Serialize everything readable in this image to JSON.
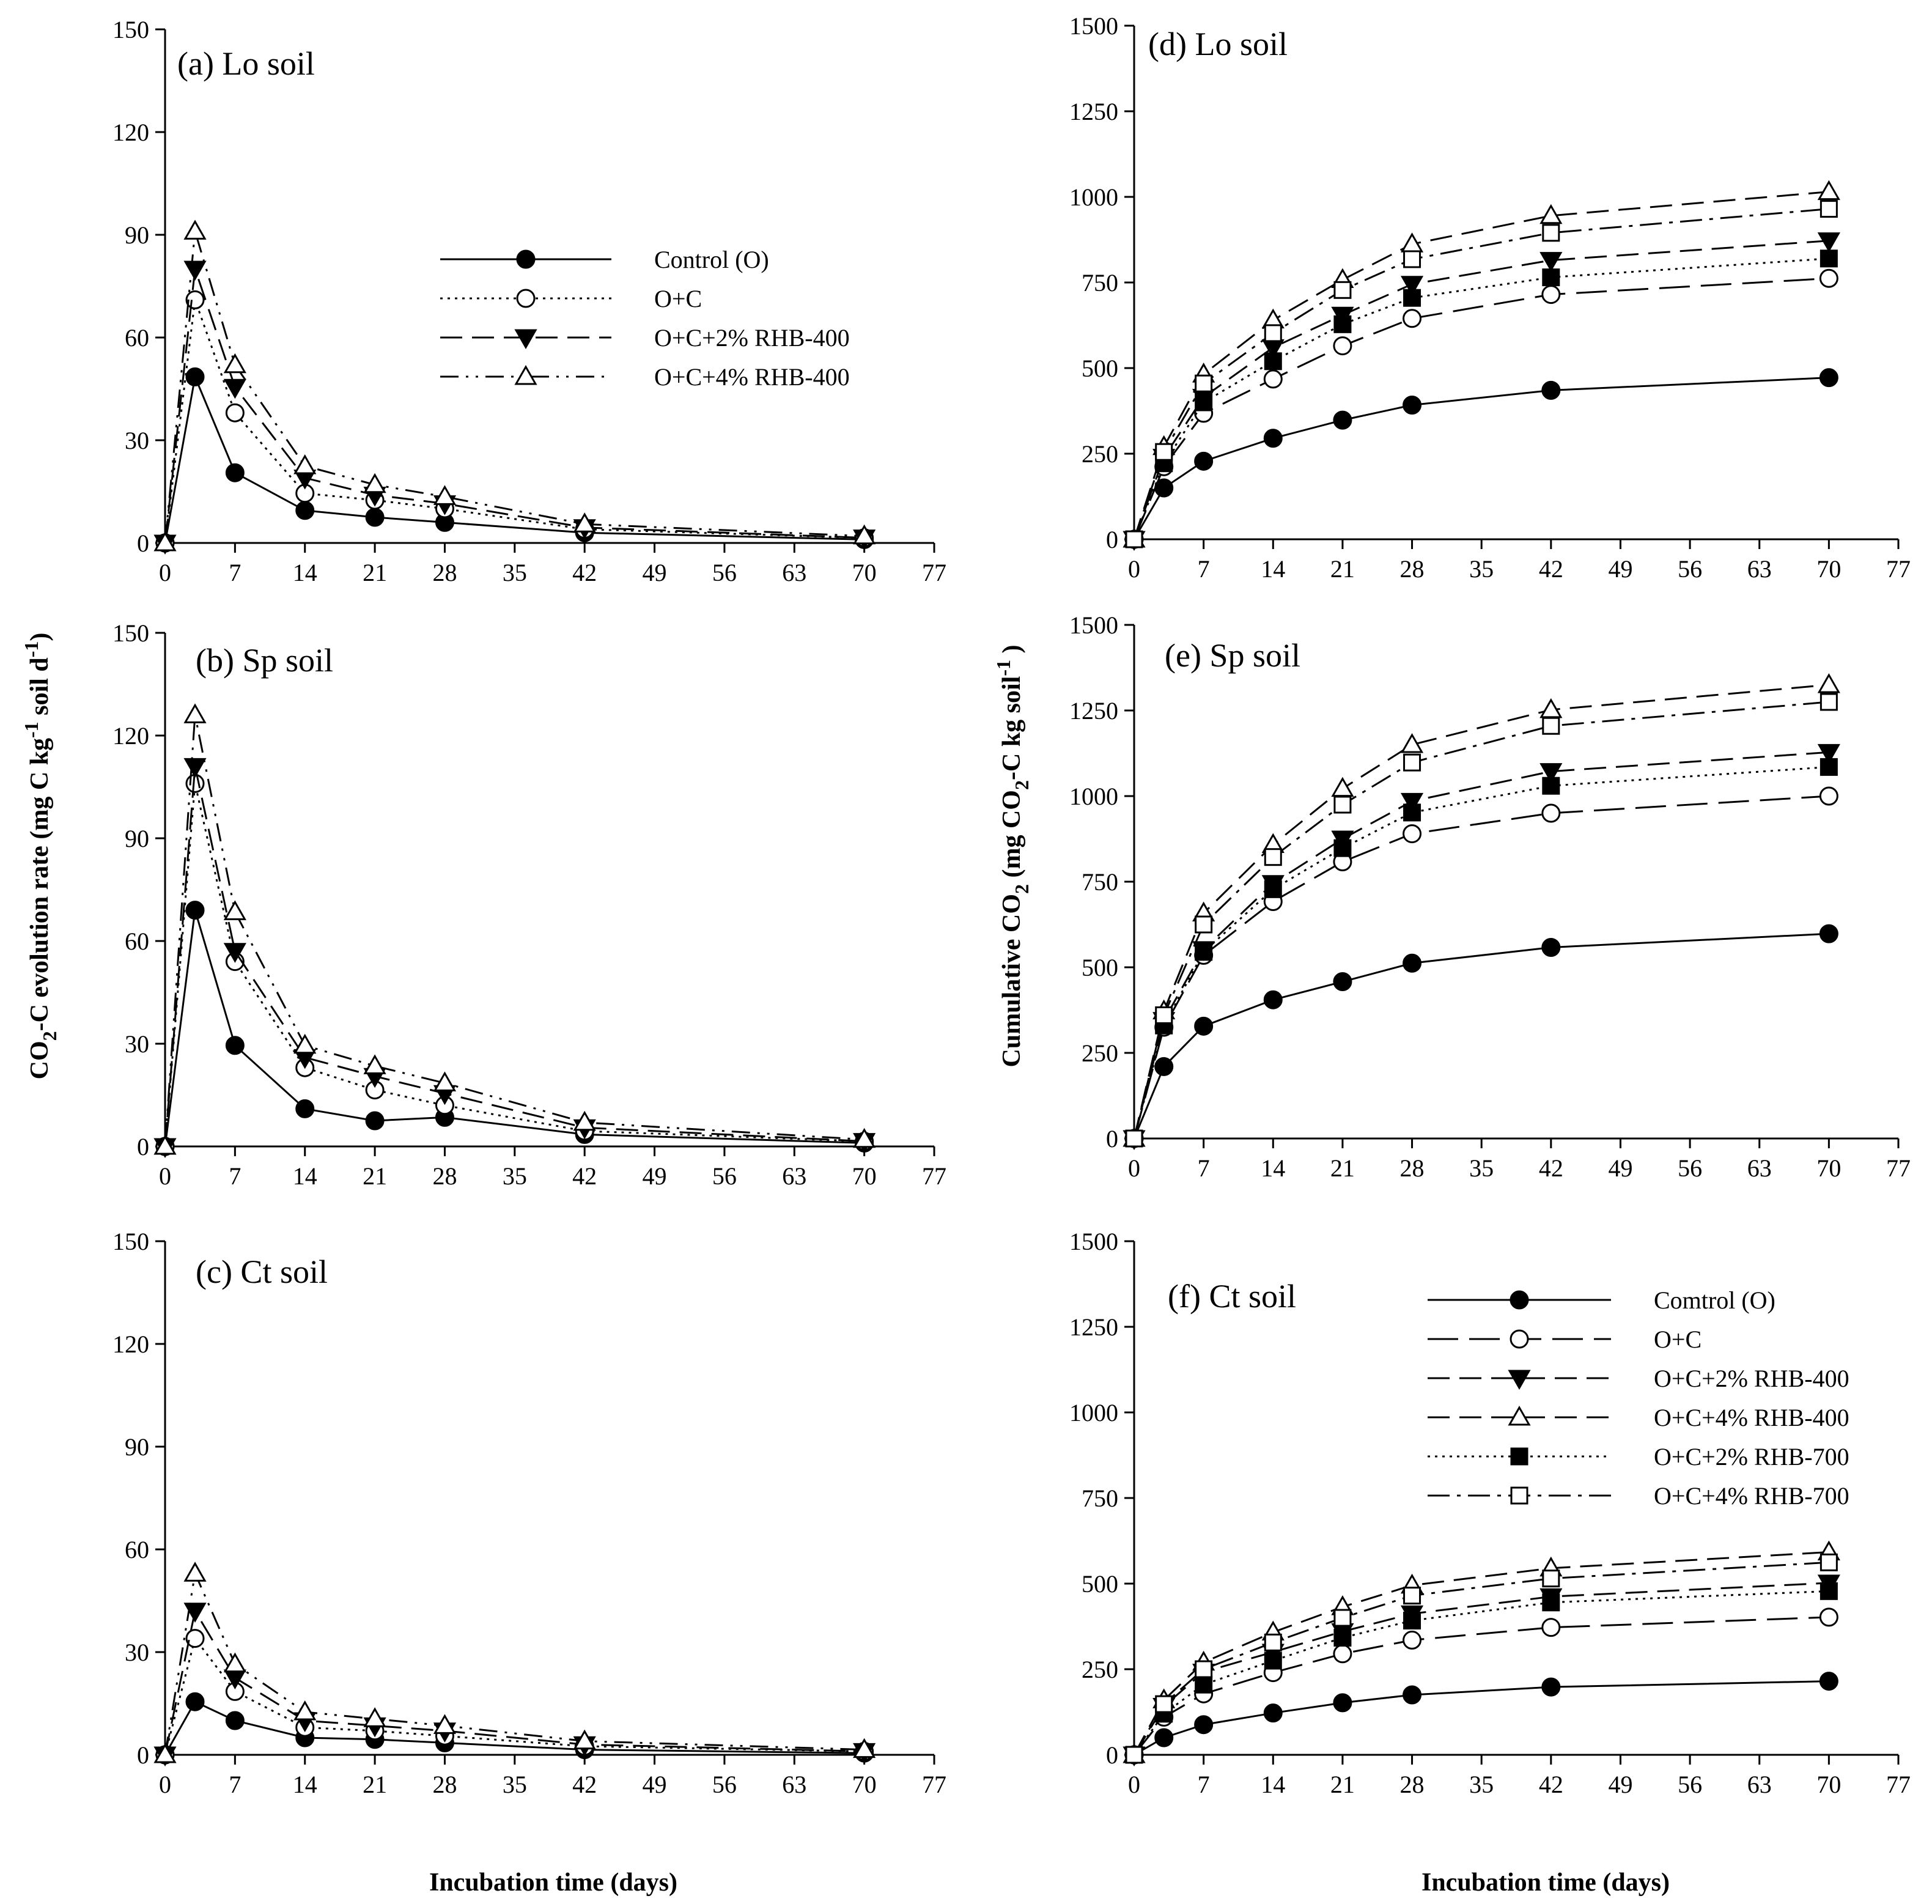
{
  "figure": {
    "xlabel_left": "Incubation time (days)",
    "xlabel_right": "Incubation time (days)",
    "ylabel_left": {
      "a": "CO",
      "b": "2",
      "c": "-C evolution rate (mg C kg",
      "d": "-1",
      "e": " soil d",
      "f": "-1",
      "g": ")"
    },
    "ylabel_right": {
      "a": "Cumulative CO",
      "b": "2",
      "c": " (mg CO",
      "d": "2",
      "e": "-C kg soil",
      "f": "-1",
      "g": " )"
    }
  },
  "chart_data": [
    {
      "id": "a",
      "type": "line",
      "title": "(a) Lo soil",
      "xlim": [
        0,
        77
      ],
      "ylim": [
        0,
        150
      ],
      "xticks": [
        0,
        7,
        14,
        21,
        28,
        35,
        42,
        49,
        56,
        63,
        70,
        77
      ],
      "yticks": [
        0,
        30,
        60,
        90,
        120,
        150
      ],
      "x": [
        0,
        3,
        7,
        14,
        21,
        28,
        42,
        70
      ],
      "legend": {
        "position": "top-right",
        "entries": [
          "Control (O)",
          "O+C",
          "O+C+2% RHB-400",
          "O+C+4% RHB-400"
        ]
      },
      "series": [
        {
          "name": "Control (O)",
          "style": "ctrl",
          "values": [
            0,
            48.5,
            20.5,
            9.5,
            7.5,
            6,
            3,
            1
          ]
        },
        {
          "name": "O+C",
          "style": "oc",
          "values": [
            0,
            71,
            38,
            14.5,
            12.5,
            10,
            4,
            1.5
          ]
        },
        {
          "name": "O+C+2% RHB-400",
          "style": "t2",
          "values": [
            0,
            80,
            45.5,
            19,
            14,
            11.5,
            4.5,
            1.5
          ]
        },
        {
          "name": "O+C+4% RHB-400",
          "style": "t4",
          "values": [
            0,
            91,
            52,
            22.5,
            17,
            13.5,
            5.5,
            2
          ]
        }
      ]
    },
    {
      "id": "b",
      "type": "line",
      "title": "(b) Sp soil",
      "xlim": [
        0,
        77
      ],
      "ylim": [
        0,
        150
      ],
      "xticks": [
        0,
        7,
        14,
        21,
        28,
        35,
        42,
        49,
        56,
        63,
        70,
        77
      ],
      "yticks": [
        0,
        30,
        60,
        90,
        120,
        150
      ],
      "x": [
        0,
        3,
        7,
        14,
        21,
        28,
        42,
        70
      ],
      "series": [
        {
          "name": "Control (O)",
          "style": "ctrl",
          "values": [
            0,
            69,
            29.5,
            11,
            7.5,
            8.5,
            3.5,
            1
          ]
        },
        {
          "name": "O+C",
          "style": "oc",
          "values": [
            0,
            106,
            54,
            23,
            16.5,
            12,
            4.5,
            1.5
          ]
        },
        {
          "name": "O+C+2% RHB-400",
          "style": "t2",
          "values": [
            0,
            111,
            57,
            26,
            20.5,
            15.5,
            5.5,
            1.5
          ]
        },
        {
          "name": "O+C+4% RHB-400",
          "style": "t4",
          "values": [
            0,
            126,
            68.5,
            29.5,
            23.5,
            18.5,
            7,
            2
          ]
        }
      ]
    },
    {
      "id": "c",
      "type": "line",
      "title": "(c) Ct soil",
      "xlim": [
        0,
        77
      ],
      "ylim": [
        0,
        150
      ],
      "xticks": [
        0,
        7,
        14,
        21,
        28,
        35,
        42,
        49,
        56,
        63,
        70,
        77
      ],
      "yticks": [
        0,
        30,
        60,
        90,
        120,
        150
      ],
      "x": [
        0,
        3,
        7,
        14,
        21,
        28,
        42,
        70
      ],
      "series": [
        {
          "name": "Control (O)",
          "style": "ctrl",
          "values": [
            0,
            15.5,
            10,
            5,
            4.5,
            3.5,
            1.5,
            0.5
          ]
        },
        {
          "name": "O+C",
          "style": "oc",
          "values": [
            0,
            34,
            18.5,
            8,
            7,
            5.5,
            2.5,
            1
          ]
        },
        {
          "name": "O+C+2% RHB-400",
          "style": "t2",
          "values": [
            0,
            42,
            22.5,
            10,
            8.5,
            7,
            3,
            1
          ]
        },
        {
          "name": "O+C+4% RHB-400",
          "style": "t4",
          "values": [
            0,
            53,
            26.5,
            12.5,
            10.5,
            8.5,
            4,
            1.5
          ]
        }
      ]
    },
    {
      "id": "d",
      "type": "line",
      "title": "(d) Lo soil",
      "xlim": [
        0,
        77
      ],
      "ylim": [
        0,
        1500
      ],
      "xticks": [
        0,
        7,
        14,
        21,
        28,
        35,
        42,
        49,
        56,
        63,
        70,
        77
      ],
      "yticks": [
        0,
        250,
        500,
        750,
        1000,
        1250,
        1500
      ],
      "x": [
        0,
        3,
        7,
        14,
        21,
        28,
        42,
        70
      ],
      "series": [
        {
          "name": "Control (O)",
          "style": "ctrl",
          "values": [
            0,
            150,
            228,
            295,
            348,
            392,
            435,
            472
          ]
        },
        {
          "name": "O+C",
          "style": "ocR",
          "values": [
            0,
            212,
            368,
            468,
            565,
            645,
            715,
            762
          ]
        },
        {
          "name": "O+C+2% RHB-400",
          "style": "t2",
          "values": [
            0,
            240,
            415,
            560,
            655,
            745,
            815,
            872
          ]
        },
        {
          "name": "O+C+4% RHB-400",
          "style": "t4R",
          "values": [
            0,
            270,
            482,
            640,
            758,
            862,
            945,
            1015
          ]
        },
        {
          "name": "O+C+2% RHB-700",
          "style": "s2",
          "values": [
            0,
            222,
            400,
            520,
            628,
            705,
            765,
            820
          ]
        },
        {
          "name": "O+C+4% RHB-700",
          "style": "s4",
          "values": [
            0,
            255,
            455,
            602,
            728,
            818,
            895,
            965
          ]
        }
      ]
    },
    {
      "id": "e",
      "type": "line",
      "title": "(e) Sp soil",
      "xlim": [
        0,
        77
      ],
      "ylim": [
        0,
        1500
      ],
      "xticks": [
        0,
        7,
        14,
        21,
        28,
        35,
        42,
        49,
        56,
        63,
        70,
        77
      ],
      "yticks": [
        0,
        250,
        500,
        750,
        1000,
        1250,
        1500
      ],
      "x": [
        0,
        3,
        7,
        14,
        21,
        28,
        42,
        70
      ],
      "series": [
        {
          "name": "Control (O)",
          "style": "ctrl",
          "values": [
            0,
            210,
            328,
            405,
            458,
            512,
            558,
            598
          ]
        },
        {
          "name": "O+C",
          "style": "ocR",
          "values": [
            0,
            325,
            535,
            692,
            808,
            890,
            950,
            1000
          ]
        },
        {
          "name": "O+C+2% RHB-400",
          "style": "t2",
          "values": [
            0,
            345,
            552,
            745,
            875,
            985,
            1072,
            1128
          ]
        },
        {
          "name": "O+C+4% RHB-400",
          "style": "t4R",
          "values": [
            0,
            372,
            658,
            858,
            1022,
            1150,
            1252,
            1325
          ]
        },
        {
          "name": "O+C+2% RHB-700",
          "style": "s2",
          "values": [
            0,
            330,
            545,
            728,
            848,
            952,
            1030,
            1085
          ]
        },
        {
          "name": "O+C+4% RHB-700",
          "style": "s4",
          "values": [
            0,
            360,
            625,
            822,
            975,
            1098,
            1205,
            1275
          ]
        }
      ]
    },
    {
      "id": "f",
      "type": "line",
      "title": "(f) Ct soil",
      "xlim": [
        0,
        77
      ],
      "ylim": [
        0,
        1500
      ],
      "xticks": [
        0,
        7,
        14,
        21,
        28,
        35,
        42,
        49,
        56,
        63,
        70,
        77
      ],
      "yticks": [
        0,
        250,
        500,
        750,
        1000,
        1250,
        1500
      ],
      "x": [
        0,
        3,
        7,
        14,
        21,
        28,
        42,
        70
      ],
      "legend": {
        "position": "top-right",
        "entries": [
          "Comtrol (O)",
          "O+C",
          "O+C+2% RHB-400",
          "O+C+4% RHB-400",
          "O+C+2% RHB-700",
          "O+C+4% RHB-700"
        ]
      },
      "series": [
        {
          "name": "Comtrol (O)",
          "style": "ctrl",
          "values": [
            0,
            50,
            88,
            122,
            152,
            175,
            198,
            215
          ]
        },
        {
          "name": "O+C",
          "style": "ocR",
          "values": [
            0,
            110,
            178,
            240,
            295,
            335,
            372,
            402
          ]
        },
        {
          "name": "O+C+2% RHB-400",
          "style": "t2",
          "values": [
            0,
            142,
            242,
            300,
            360,
            412,
            462,
            502
          ]
        },
        {
          "name": "O+C+4% RHB-400",
          "style": "t4R",
          "values": [
            0,
            160,
            270,
            358,
            432,
            495,
            545,
            592
          ]
        },
        {
          "name": "O+C+2% RHB-700",
          "style": "s2",
          "values": [
            0,
            120,
            205,
            275,
            342,
            392,
            445,
            478
          ]
        },
        {
          "name": "O+C+4% RHB-700",
          "style": "s4",
          "values": [
            0,
            148,
            250,
            328,
            400,
            465,
            515,
            562
          ]
        }
      ]
    }
  ]
}
